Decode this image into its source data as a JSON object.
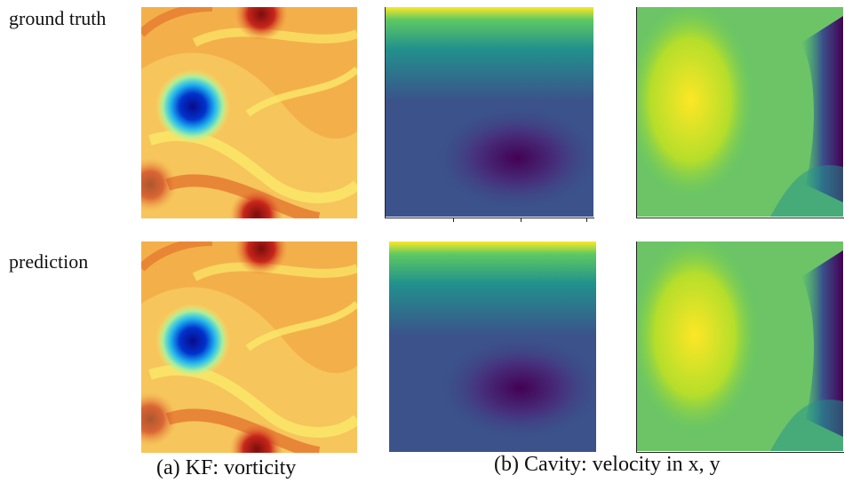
{
  "labels": {
    "row_top": "ground truth",
    "row_bottom": "prediction"
  },
  "captions": {
    "a": "(a) KF: vorticity",
    "b": "(b) Cavity: velocity in x, y"
  },
  "panels": [
    {
      "name": "kf-vorticity-ground-truth",
      "colormap": "jet"
    },
    {
      "name": "cavity-velocity-x-ground-truth",
      "colormap": "viridis"
    },
    {
      "name": "cavity-velocity-y-ground-truth",
      "colormap": "viridis"
    },
    {
      "name": "kf-vorticity-prediction",
      "colormap": "jet"
    },
    {
      "name": "cavity-velocity-x-prediction",
      "colormap": "viridis"
    },
    {
      "name": "cavity-velocity-y-prediction",
      "colormap": "viridis"
    }
  ],
  "colors": {
    "jet_red": "#c8261b",
    "jet_orange": "#ee8a3a",
    "jet_yellow": "#fbe96a",
    "jet_blue": "#0033cc",
    "viridis_purple": "#440154",
    "viridis_blue": "#3b528b",
    "viridis_teal": "#21918c",
    "viridis_green": "#5ec962",
    "viridis_yellow": "#fde725"
  }
}
